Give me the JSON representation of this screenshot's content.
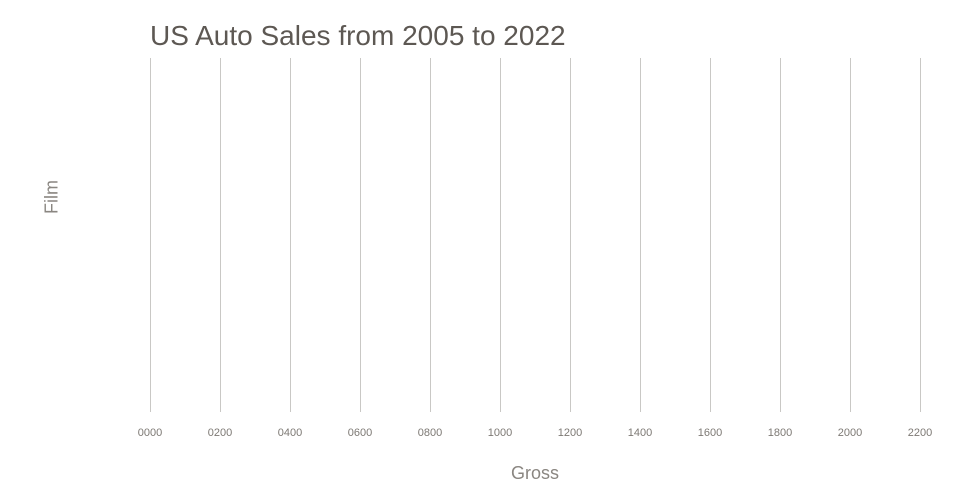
{
  "figure": {
    "title": "US Auto Sales from 2005 to 2022",
    "x_axis": {
      "label": "Gross",
      "tick_labels": [
        "0000",
        "0200",
        "0400",
        "0600",
        "0800",
        "1000",
        "1200",
        "1400",
        "1600",
        "1800",
        "2000",
        "2200"
      ]
    },
    "y_axis": {
      "label": "Film",
      "tick_labels": []
    },
    "colors": {
      "background": "#ffffff",
      "title_text": "#5d5853",
      "axis_label_text": "#8a8681",
      "tick_label_text": "#7d7974",
      "gridline": "#c9c8c5"
    }
  },
  "chart_data": {
    "type": "bar",
    "orientation": "horizontal",
    "title": "US Auto Sales from 2005 to 2022",
    "xlabel": "Gross",
    "ylabel": "Film",
    "xlim": [
      0,
      2200
    ],
    "x_tick_labels": [
      "0000",
      "0200",
      "0400",
      "0600",
      "0800",
      "1000",
      "1200",
      "1400",
      "1600",
      "1800",
      "2000",
      "2200"
    ],
    "x_tick_values": [
      0,
      200,
      400,
      600,
      800,
      1000,
      1200,
      1400,
      1600,
      1800,
      2000,
      2200
    ],
    "categories": [],
    "values": [],
    "grid": "vertical gridlines only, no horizontal gridlines, no axis lines",
    "legend_position": "none"
  }
}
